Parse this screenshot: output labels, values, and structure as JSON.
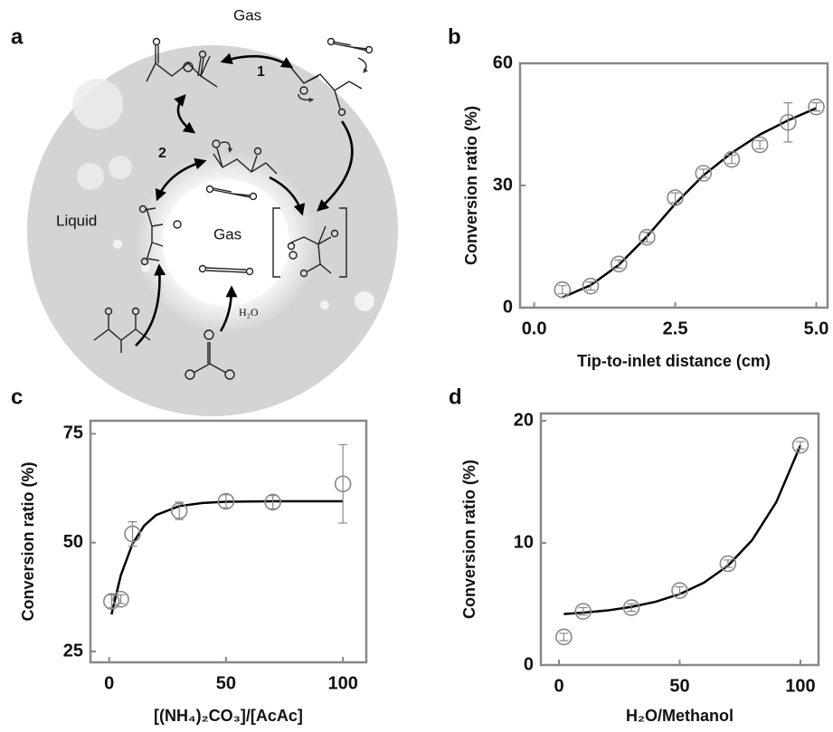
{
  "diagram": {
    "label": "a",
    "outer_gas": "Gas",
    "step1": "1",
    "step2": "2",
    "liquid": "Liquid",
    "inner_gas": "Gas",
    "water": "H₂O"
  },
  "chart_data": [
    {
      "type": "scatter",
      "label": "b",
      "x_label": "Tip-to-inlet distance (cm)",
      "y_label": "Conversion ratio (%)",
      "x": [
        0.5,
        1.0,
        1.5,
        2.0,
        2.5,
        3.0,
        3.5,
        4.0,
        4.5,
        5.0
      ],
      "values": [
        4.4,
        5.3,
        10.7,
        17.3,
        27,
        33,
        36.4,
        40,
        45.5,
        49.3
      ],
      "errors": [
        1,
        1,
        1,
        1.2,
        1.2,
        1,
        1,
        1,
        4.8,
        1
      ],
      "fit": {
        "x": [
          0.5,
          1.0,
          1.5,
          2.0,
          2.5,
          3.0,
          3.5,
          4.0,
          4.5,
          5.0
        ],
        "y": [
          2.5,
          5.5,
          10.5,
          17.5,
          25.5,
          32.5,
          38,
          42.5,
          46,
          49
        ]
      },
      "color": "#888888",
      "fit_color": "#000000",
      "xlim": [
        -0.25,
        5.2
      ],
      "ylim": [
        0,
        60
      ],
      "xticks": [
        {
          "value": 0,
          "label": "0.0"
        },
        2.5,
        {
          "value": 5,
          "label": "5.0"
        }
      ],
      "yticks": [
        0,
        30,
        60
      ]
    },
    {
      "type": "scatter",
      "label": "c",
      "x_label": "[(NH₄)₂CO₃]/[AcAc]",
      "y_label": "Conversion ratio (%)",
      "x": [
        1,
        5,
        10,
        30,
        50,
        70,
        100
      ],
      "values": [
        36.5,
        37,
        52,
        57.3,
        59.5,
        59.3,
        63.5
      ],
      "errors": [
        1.5,
        1,
        2.8,
        2,
        1.5,
        1.5,
        9
      ],
      "fit": {
        "x": [
          1,
          5,
          10,
          15,
          20,
          30,
          40,
          50,
          70,
          100
        ],
        "y": [
          33.5,
          42.5,
          49.75,
          53.9,
          56.3,
          58.4,
          59.1,
          59.4,
          59.5,
          59.5
        ]
      },
      "color": "#888888",
      "fit_color": "#000000",
      "xlim": [
        -8,
        110
      ],
      "ylim": [
        22.5,
        78
      ],
      "xticks": [
        0,
        50,
        100
      ],
      "yticks": [
        25,
        50,
        75
      ]
    },
    {
      "type": "scatter",
      "label": "d",
      "x_label": "H₂O/Methanol",
      "y_label": "Conversion ratio (%)",
      "x": [
        2,
        10,
        30,
        50,
        70,
        100
      ],
      "values": [
        2.3,
        4.4,
        4.7,
        6.1,
        8.3,
        18
      ],
      "errors": [
        0.3,
        0.3,
        0.3,
        0.3,
        0.3,
        0.3
      ],
      "fit": {
        "x": [
          2,
          10,
          20,
          30,
          40,
          50,
          60,
          70,
          80,
          90,
          100
        ],
        "y": [
          4.18,
          4.29,
          4.47,
          4.76,
          5.18,
          5.81,
          6.74,
          8.14,
          10.23,
          13.34,
          17.99
        ]
      },
      "color": "#888888",
      "fit_color": "#000000",
      "xlim": [
        -7.5,
        107.5
      ],
      "ylim": [
        0,
        20.6
      ],
      "xticks": [
        0,
        50,
        100
      ],
      "yticks": [
        0,
        10,
        20
      ]
    }
  ]
}
